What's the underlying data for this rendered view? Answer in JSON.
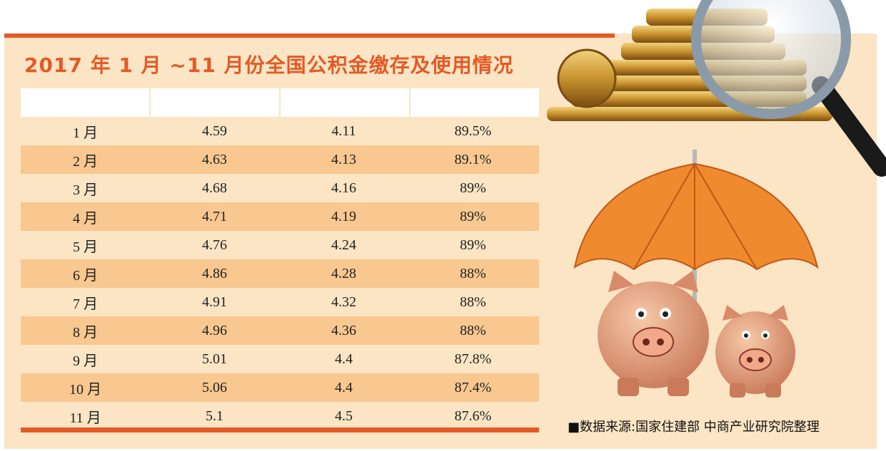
{
  "title": "2017 年 1 月 ~11 月份全国公积金缴存及使用情况",
  "source": "■数据来源:国家住建部 中商产业研究院整理",
  "colors": {
    "accent": "#e35a25",
    "row_alt": "#f8c890",
    "panel": "#fbe5c5"
  },
  "icons": [
    "coin-stack-icon",
    "magnifier-icon",
    "umbrella-icon",
    "piggy-bank-icon"
  ],
  "chart_data": {
    "type": "table",
    "columns": [
      "",
      "",
      "",
      ""
    ],
    "rows": [
      [
        "1 月",
        "4.59",
        "4.11",
        "89.5%"
      ],
      [
        "2 月",
        "4.63",
        "4.13",
        "89.1%"
      ],
      [
        "3 月",
        "4.68",
        "4.16",
        "89%"
      ],
      [
        "4 月",
        "4.71",
        "4.19",
        "89%"
      ],
      [
        "5 月",
        "4.76",
        "4.24",
        "89%"
      ],
      [
        "6 月",
        "4.86",
        "4.28",
        "88%"
      ],
      [
        "7 月",
        "4.91",
        "4.32",
        "88%"
      ],
      [
        "8 月",
        "4.96",
        "4.36",
        "88%"
      ],
      [
        "9 月",
        "5.01",
        "4.4",
        "87.8%"
      ],
      [
        "10 月",
        "5.06",
        "4.4",
        "87.4%"
      ],
      [
        "11 月",
        "5.1",
        "4.5",
        "87.6%"
      ]
    ]
  }
}
